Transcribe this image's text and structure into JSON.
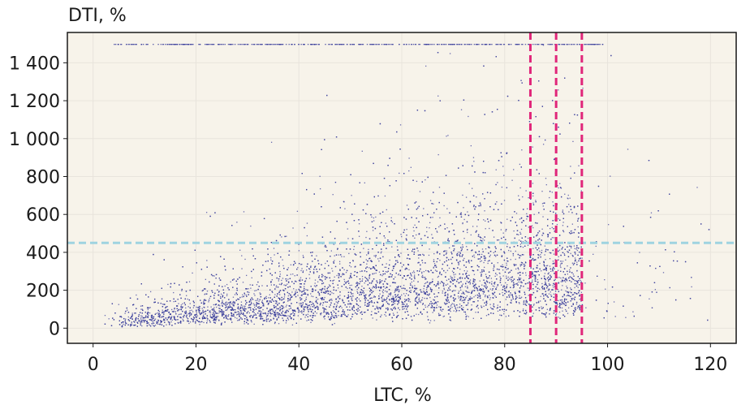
{
  "chart_data": {
    "type": "scatter",
    "title": "",
    "xlabel": "LTC, %",
    "ylabel": "DTI, %",
    "xlim": [
      -5,
      125
    ],
    "ylim": [
      -80,
      1560
    ],
    "xticks": [
      0,
      20,
      40,
      60,
      80,
      100,
      120
    ],
    "yticks": [
      0,
      200,
      400,
      600,
      800,
      1000,
      1200,
      1400
    ],
    "xtick_labels": [
      "0",
      "20",
      "40",
      "60",
      "80",
      "100",
      "120"
    ],
    "ytick_labels": [
      "0",
      "200",
      "400",
      "600",
      "800",
      "1 000",
      "1 200",
      "1 400"
    ],
    "grid": true,
    "legend": "none",
    "colors": {
      "background": "#f7f3ea",
      "points": "#3b3f9c",
      "vertical_lines": "#e0267a",
      "horizontal_line": "#9fd3e0",
      "grid": "#e8e4dc"
    },
    "series": [
      {
        "values_description_note": "",
        "density_profile": {
          "x_range": [
            2,
            120
          ],
          "y_range": [
            10,
            1500
          ],
          "dense_x_range": [
            5,
            95
          ],
          "cap_value_y": 1500,
          "median_y_by_x": [
            [
              5,
              40
            ],
            [
              20,
              90
            ],
            [
              40,
              150
            ],
            [
              60,
              230
            ],
            [
              75,
              280
            ],
            [
              88,
              300
            ],
            [
              95,
              260
            ]
          ]
        }
      }
    ],
    "reference_lines": {
      "vertical_x": [
        85,
        90,
        95
      ],
      "horizontal_y": 450
    }
  }
}
